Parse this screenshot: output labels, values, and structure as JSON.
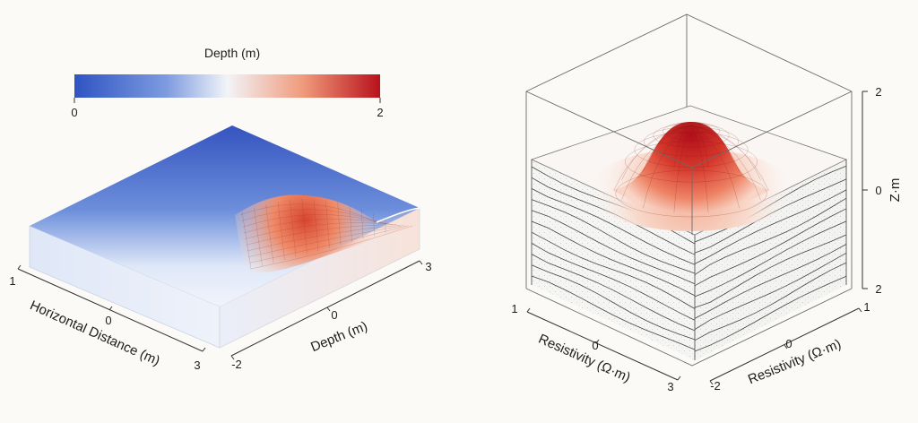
{
  "chart_data": [
    {
      "type": "surface3d",
      "colorbar": {
        "title": "Depth (m)",
        "min_label": "0",
        "max_label": "2",
        "colormap": [
          "#2f53c2",
          "#6c8fdb",
          "#eef3fb",
          "#f1a383",
          "#b8121c"
        ]
      },
      "x_axis": {
        "label": "Horizontal Distance (m)",
        "ticks": [
          "1",
          "0",
          "3"
        ]
      },
      "y_axis": {
        "label": "Depth (m)",
        "ticks": [
          "3",
          "0",
          "-2"
        ]
      },
      "surface": {
        "peak_depth": 2
      }
    },
    {
      "type": "surface3d",
      "x_axis": {
        "label": "Resistivity (Ω·m)",
        "ticks": [
          "1",
          "0",
          "3"
        ]
      },
      "y_axis": {
        "label": "Resistivity (Ω·m)",
        "ticks": [
          "1",
          "0",
          "-2"
        ]
      },
      "z_axis": {
        "label": "Z·m",
        "ticks": [
          "2",
          "0",
          "2"
        ]
      },
      "layers": 11,
      "surface_colors": [
        "#f9e3d9",
        "#e8694e",
        "#b3121d"
      ]
    }
  ]
}
